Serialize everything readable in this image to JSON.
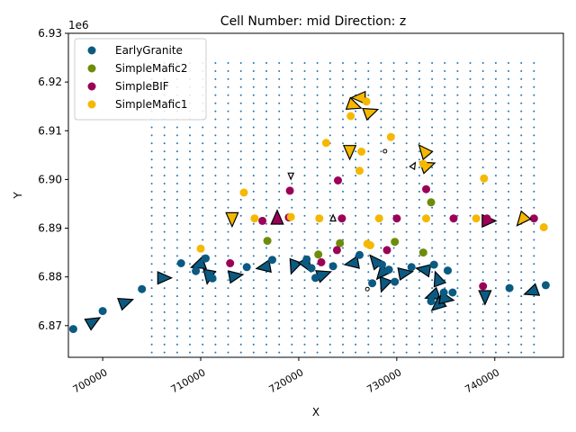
{
  "colors": {
    "EarlyGranite": "#0b5a82",
    "SimpleMafic2": "#6e8c0a",
    "SimpleBIF": "#9b0058",
    "SimpleMafic1": "#f5b800",
    "grid_dots": "#1f77b4"
  },
  "chart_data": {
    "type": "scatter",
    "title": "Cell Number: mid Direction: z",
    "xlabel": "X",
    "ylabel": "Y",
    "y_offset_label": "1e6",
    "xlim": [
      696500,
      747000
    ],
    "ylim": [
      6.8635,
      6.93
    ],
    "x_ticks": [
      700000,
      710000,
      720000,
      730000,
      740000
    ],
    "x_tick_labels": [
      "700000",
      "710000",
      "720000",
      "730000",
      "740000"
    ],
    "y_ticks": [
      6.87,
      6.88,
      6.89,
      6.9,
      6.91,
      6.92,
      6.93
    ],
    "y_tick_labels": [
      "6.87",
      "6.88",
      "6.89",
      "6.90",
      "6.91",
      "6.92",
      "6.93"
    ],
    "legend_position": "top-left",
    "legend": [
      "EarlyGranite",
      "SimpleMafic2",
      "SimpleBIF",
      "SimpleMafic1"
    ],
    "grid_dots": {
      "x_start": 705000,
      "x_end": 745000,
      "x_step": 1300,
      "y_start": 6.8645,
      "y_end": 6.9255,
      "y_step": 0.00165
    },
    "series": [
      {
        "name": "EarlyGranite",
        "points": [
          [
            697000,
            6.8693
          ],
          [
            700000,
            6.873
          ],
          [
            704000,
            6.8775
          ],
          [
            708000,
            6.8828
          ],
          [
            709500,
            6.8812
          ],
          [
            710500,
            6.8838
          ],
          [
            711200,
            6.8797
          ],
          [
            714700,
            6.882
          ],
          [
            717300,
            6.8835
          ],
          [
            720800,
            6.8836
          ],
          [
            721300,
            6.8818
          ],
          [
            721700,
            6.8798
          ],
          [
            723500,
            6.8822
          ],
          [
            726200,
            6.8845
          ],
          [
            727500,
            6.8787
          ],
          [
            728500,
            6.8825
          ],
          [
            729200,
            6.8815
          ],
          [
            729800,
            6.879
          ],
          [
            731500,
            6.882
          ],
          [
            733800,
            6.8825
          ],
          [
            733500,
            6.875
          ],
          [
            734800,
            6.8768
          ],
          [
            735200,
            6.8813
          ],
          [
            735700,
            6.8768
          ],
          [
            741500,
            6.8777
          ],
          [
            745200,
            6.8783
          ]
        ],
        "arrows": [
          [
            699000,
            6.8708,
            30
          ],
          [
            702300,
            6.8748,
            20
          ],
          [
            706200,
            6.8798,
            0
          ],
          [
            709800,
            6.8825,
            200
          ],
          [
            710800,
            6.8802,
            260
          ],
          [
            713500,
            6.8802,
            10
          ],
          [
            716500,
            6.882,
            190
          ],
          [
            719500,
            6.8822,
            250
          ],
          [
            720800,
            6.8825,
            300
          ],
          [
            722500,
            6.8805,
            20
          ],
          [
            725500,
            6.8828,
            190
          ],
          [
            727800,
            6.8832,
            130
          ],
          [
            728500,
            6.8808,
            230
          ],
          [
            728700,
            6.8785,
            250
          ],
          [
            730800,
            6.8808,
            10
          ],
          [
            732800,
            6.8815,
            170
          ],
          [
            733700,
            6.8762,
            200
          ],
          [
            734200,
            6.8795,
            110
          ],
          [
            734200,
            6.8742,
            220
          ],
          [
            735000,
            6.8755,
            350
          ],
          [
            739000,
            6.876,
            270
          ],
          [
            743800,
            6.877,
            200
          ]
        ]
      },
      {
        "name": "SimpleMafic2",
        "points": [
          [
            716800,
            6.8874
          ],
          [
            722000,
            6.8846
          ],
          [
            724200,
            6.8869
          ],
          [
            729800,
            6.8872
          ],
          [
            732700,
            6.885
          ],
          [
            733500,
            6.8953
          ]
        ],
        "arrows": []
      },
      {
        "name": "SimpleBIF",
        "points": [
          [
            713000,
            6.8828
          ],
          [
            716300,
            6.8915
          ],
          [
            719000,
            6.8922
          ],
          [
            719100,
            6.8977
          ],
          [
            722300,
            6.883
          ],
          [
            723900,
            6.8855
          ],
          [
            724000,
            6.8998
          ],
          [
            724400,
            6.892
          ],
          [
            729000,
            6.8855
          ],
          [
            730000,
            6.892
          ],
          [
            733000,
            6.898
          ],
          [
            735800,
            6.892
          ],
          [
            738800,
            6.8781
          ],
          [
            739200,
            6.892
          ],
          [
            744000,
            6.892
          ]
        ],
        "arrows": [
          [
            717800,
            6.892,
            90
          ],
          [
            739300,
            6.8915,
            0
          ]
        ]
      },
      {
        "name": "SimpleMafic1",
        "points": [
          [
            710000,
            6.8858
          ],
          [
            714400,
            6.8973
          ],
          [
            715500,
            6.892
          ],
          [
            719200,
            6.8923
          ],
          [
            722100,
            6.892
          ],
          [
            722800,
            6.9075
          ],
          [
            725300,
            6.913
          ],
          [
            726200,
            6.9018
          ],
          [
            726400,
            6.9057
          ],
          [
            727000,
            6.8868
          ],
          [
            727300,
            6.8865
          ],
          [
            728200,
            6.892
          ],
          [
            729400,
            6.9087
          ],
          [
            732700,
            6.9032
          ],
          [
            733000,
            6.892
          ],
          [
            738100,
            6.892
          ],
          [
            738900,
            6.9002
          ],
          [
            745000,
            6.8902
          ],
          [
            726900,
            6.916
          ]
        ],
        "arrows": [
          [
            713200,
            6.892,
            270
          ],
          [
            725600,
            6.9152,
            340
          ],
          [
            726200,
            6.9168,
            180
          ],
          [
            727300,
            6.9138,
            20
          ],
          [
            725200,
            6.9058,
            270
          ],
          [
            732800,
            6.9058,
            130
          ],
          [
            733100,
            6.9028,
            20
          ],
          [
            742800,
            6.8918,
            230
          ]
        ]
      },
      {
        "name": "outline_only",
        "points": [],
        "small_points": [
          [
            723500,
            6.892
          ],
          [
            728800,
            6.9058
          ],
          [
            727000,
            6.8775
          ]
        ],
        "small_arrows": [
          [
            719200,
            6.9008,
            270
          ],
          [
            731700,
            6.9028,
            60
          ],
          [
            723500,
            6.892,
            90
          ]
        ]
      }
    ]
  }
}
